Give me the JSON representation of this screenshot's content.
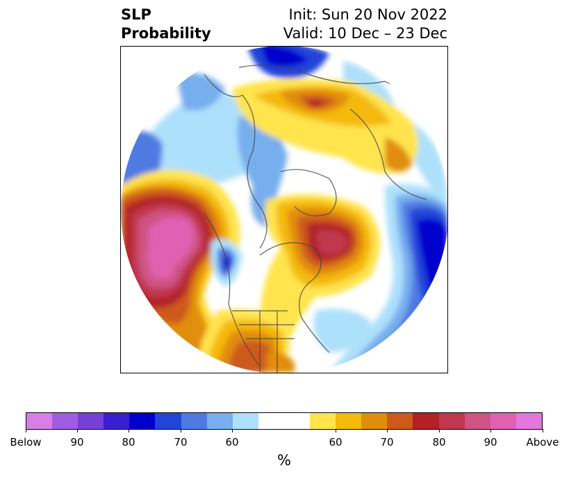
{
  "title": {
    "left_line1": "SLP",
    "left_line2": "Probability",
    "right_line1": "Init: Sun 20 Nov 2022",
    "right_line2": "Valid: 10 Dec – 23 Dec"
  },
  "colorbar": {
    "colors": [
      "#d97de7",
      "#a15de0",
      "#7540d8",
      "#3a1fd1",
      "#0000cd",
      "#2444d8",
      "#4f7ae2",
      "#77aeee",
      "#ade0fb",
      "#ffffff",
      "#ffffff",
      "#ffe44d",
      "#f4b90c",
      "#e18d0c",
      "#cd5a1a",
      "#b22125",
      "#c0374e",
      "#cf5384",
      "#e061b1",
      "#e477dc"
    ],
    "tick_labels": [
      "Below",
      "90",
      "80",
      "70",
      "60",
      "60",
      "70",
      "80",
      "90",
      "Above"
    ],
    "unit": "%"
  }
}
